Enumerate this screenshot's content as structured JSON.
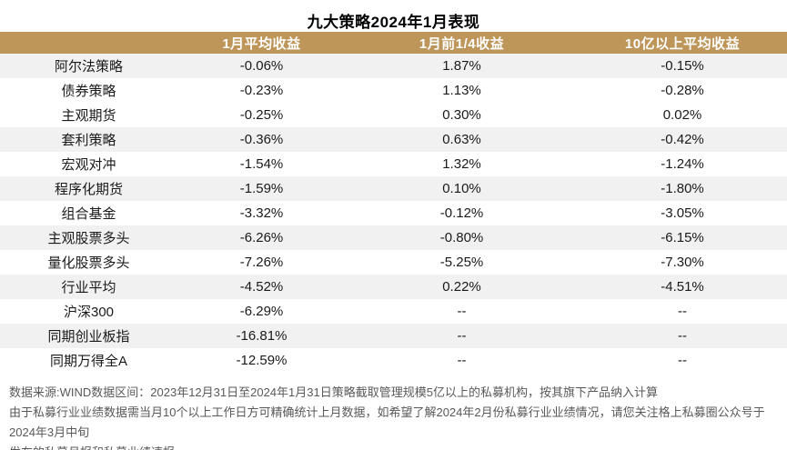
{
  "title": "九大策略2024年1月表现",
  "colors": {
    "header_bg": "#BE965A",
    "header_text": "#FFFFFF",
    "stripe_bg": "#F1F1F1",
    "body_text": "#1A1A1A",
    "footer_text": "#595959"
  },
  "table": {
    "columns": [
      "",
      "1月平均收益",
      "1月前1/4收益",
      "10亿以上平均收益"
    ],
    "rows": [
      {
        "name": "阿尔法策略",
        "jan_avg": "-0.06%",
        "top_quartile": "1.87%",
        "over_1b_avg": "-0.15%",
        "shaded": true
      },
      {
        "name": "债券策略",
        "jan_avg": "-0.23%",
        "top_quartile": "1.13%",
        "over_1b_avg": "-0.28%",
        "shaded": false
      },
      {
        "name": "主观期货",
        "jan_avg": "-0.25%",
        "top_quartile": "0.30%",
        "over_1b_avg": "0.02%",
        "shaded": false
      },
      {
        "name": "套利策略",
        "jan_avg": "-0.36%",
        "top_quartile": "0.63%",
        "over_1b_avg": "-0.42%",
        "shaded": true
      },
      {
        "name": "宏观对冲",
        "jan_avg": "-1.54%",
        "top_quartile": "1.32%",
        "over_1b_avg": "-1.24%",
        "shaded": false
      },
      {
        "name": "程序化期货",
        "jan_avg": "-1.59%",
        "top_quartile": "0.10%",
        "over_1b_avg": "-1.80%",
        "shaded": true
      },
      {
        "name": "组合基金",
        "jan_avg": "-3.32%",
        "top_quartile": "-0.12%",
        "over_1b_avg": "-3.05%",
        "shaded": false
      },
      {
        "name": "主观股票多头",
        "jan_avg": "-6.26%",
        "top_quartile": "-0.80%",
        "over_1b_avg": "-6.15%",
        "shaded": true
      },
      {
        "name": "量化股票多头",
        "jan_avg": "-7.26%",
        "top_quartile": "-5.25%",
        "over_1b_avg": "-7.30%",
        "shaded": false
      },
      {
        "name": "行业平均",
        "jan_avg": "-4.52%",
        "top_quartile": "0.22%",
        "over_1b_avg": "-4.51%",
        "shaded": true
      },
      {
        "name": "沪深300",
        "jan_avg": "-6.29%",
        "top_quartile": "--",
        "over_1b_avg": "--",
        "shaded": false
      },
      {
        "name": "同期创业板指",
        "jan_avg": "-16.81%",
        "top_quartile": "--",
        "over_1b_avg": "--",
        "shaded": true
      },
      {
        "name": "同期万得全A",
        "jan_avg": "-12.59%",
        "top_quartile": "--",
        "over_1b_avg": "--",
        "shaded": false
      }
    ]
  },
  "footer": {
    "line1": "数据来源:WIND数据区间：2023年12月31日至2024年1月31日策略截取管理规模5亿以上的私募机构，按其旗下产品纳入计算",
    "line2": "由于私募行业业绩数据需当月10个以上工作日方可精确统计上月数据，如希望了解2024年2月份私募行业业绩情况，请您关注格上私募圈公众号于2024年3月中旬",
    "line3": "发布的私募月报和私募业绩速报。"
  }
}
